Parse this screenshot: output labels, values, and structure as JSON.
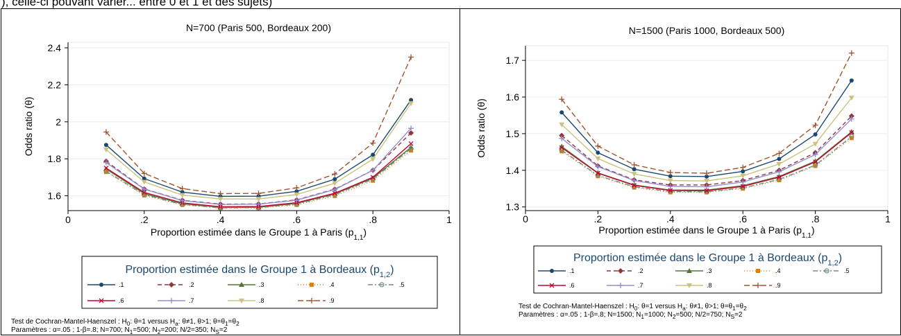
{
  "top_text": "), celle-ci pouvant varier... entre 0 et 1 et des sujets)",
  "chart_data": [
    {
      "type": "line",
      "title": "N=700 (Paris 500, Bordeaux 200)",
      "xlabel": "Proportion estimée dans le Groupe 1 à Paris (p",
      "xlabel_sub": "1,1",
      "xlabel_end": ")",
      "ylabel": "Odds ratio (θ)",
      "xlim": [
        0,
        1
      ],
      "ylim": [
        1.52,
        2.43
      ],
      "x_ticks": [
        0,
        0.2,
        0.4,
        0.6,
        0.8,
        1
      ],
      "x_tick_labels": [
        "0",
        ".2",
        ".4",
        ".6",
        ".8",
        "1"
      ],
      "y_ticks": [
        1.6,
        1.8,
        2.0,
        2.2,
        2.4
      ],
      "y_tick_labels": [
        "1.6",
        "1.8",
        "2",
        "2.2",
        "2.4"
      ],
      "grid": true,
      "legend_title": "Proportion estimée dans le Groupe 1 à Bordeaux (p",
      "legend_title_sub": "1,2",
      "legend_title_end": ")",
      "x": [
        0.1,
        0.2,
        0.3,
        0.4,
        0.5,
        0.6,
        0.7,
        0.8,
        0.9
      ],
      "series": [
        {
          "name": ".1",
          "color": "#1a476f",
          "dash": "",
          "marker": "circle",
          "values": [
            1.875,
            1.693,
            1.62,
            1.597,
            1.598,
            1.624,
            1.69,
            1.822,
            2.118
          ]
        },
        {
          "name": ".2",
          "color": "#90353b",
          "dash": "6,4",
          "marker": "diamond",
          "values": [
            1.787,
            1.637,
            1.576,
            1.555,
            1.556,
            1.578,
            1.636,
            1.738,
            1.94
          ]
        },
        {
          "name": ".3",
          "color": "#55752f",
          "dash": "",
          "marker": "triangle",
          "values": [
            1.745,
            1.612,
            1.557,
            1.538,
            1.538,
            1.559,
            1.61,
            1.696,
            1.862
          ]
        },
        {
          "name": ".4",
          "color": "#e37e00",
          "dash": "1,3",
          "marker": "square",
          "values": [
            1.729,
            1.602,
            1.551,
            1.534,
            1.534,
            1.551,
            1.599,
            1.682,
            1.845
          ]
        },
        {
          "name": ".5",
          "color": "#6e8e84",
          "dash": "7,3,2,3",
          "marker": "circle-open",
          "values": [
            1.733,
            1.606,
            1.553,
            1.535,
            1.536,
            1.555,
            1.606,
            1.69,
            1.855
          ]
        },
        {
          "name": ".6",
          "color": "#c10534",
          "dash": "",
          "marker": "x",
          "values": [
            1.75,
            1.618,
            1.562,
            1.541,
            1.542,
            1.563,
            1.614,
            1.7,
            1.882
          ]
        },
        {
          "name": ".7",
          "color": "#938dd2",
          "dash": "",
          "marker": "plus",
          "values": [
            1.78,
            1.636,
            1.574,
            1.553,
            1.555,
            1.576,
            1.634,
            1.738,
            1.965
          ]
        },
        {
          "name": ".8",
          "color": "#cac27e",
          "dash": "",
          "marker": "triangle-down",
          "values": [
            1.85,
            1.675,
            1.604,
            1.583,
            1.583,
            1.607,
            1.668,
            1.798,
            2.1
          ]
        },
        {
          "name": ".9",
          "color": "#a0522d",
          "dash": "8,4",
          "marker": "plus",
          "values": [
            1.945,
            1.721,
            1.639,
            1.612,
            1.613,
            1.643,
            1.718,
            1.885,
            2.35
          ]
        }
      ],
      "footnote_1": "Test de Cochran-Mantel-Haenszel : H",
      "footnote_1_sub1": "0",
      "footnote_1_mid": ": θ=1 versus H",
      "footnote_1_sub2": "a",
      "footnote_1_mid2": ": θ≠1, θ>1; θ=θ",
      "footnote_1_sub3": "1",
      "footnote_1_mid3": "=θ",
      "footnote_1_sub4": "2",
      "footnote_2": "Paramètres : α=.05 ; 1-β=.8; N=700; N",
      "footnote_2_sub1": "1",
      "footnote_2_mid": "=500; N",
      "footnote_2_sub2": "2",
      "footnote_2_mid2": "=200; N/2=350; N",
      "footnote_2_sub3": "S",
      "footnote_2_end": "=2"
    },
    {
      "type": "line",
      "title": "N=1500 (Paris 1000, Bordeaux 500)",
      "xlabel": "Proportion estimée dans le Groupe 1 à Paris (p",
      "xlabel_sub": "1,1",
      "xlabel_end": ")",
      "ylabel": "Odds ratio (θ)",
      "xlim": [
        0,
        1
      ],
      "ylim": [
        1.29,
        1.74
      ],
      "x_ticks": [
        0,
        0.2,
        0.4,
        0.6,
        0.8,
        1
      ],
      "x_tick_labels": [
        "0",
        ".2",
        ".4",
        ".6",
        ".8",
        "1"
      ],
      "y_ticks": [
        1.3,
        1.4,
        1.5,
        1.6,
        1.7
      ],
      "y_tick_labels": [
        "1.3",
        "1.4",
        "1.5",
        "1.6",
        "1.7"
      ],
      "grid": true,
      "legend_title": "Proportion estimée dans le Groupe 1 à Bordeaux (p",
      "legend_title_sub": "1,2",
      "legend_title_end": ")",
      "x": [
        0.1,
        0.2,
        0.3,
        0.4,
        0.5,
        0.6,
        0.7,
        0.8,
        0.9
      ],
      "series": [
        {
          "name": ".1",
          "color": "#1a476f",
          "dash": "",
          "marker": "circle",
          "values": [
            1.558,
            1.448,
            1.403,
            1.384,
            1.383,
            1.397,
            1.431,
            1.498,
            1.645
          ]
        },
        {
          "name": ".2",
          "color": "#90353b",
          "dash": "6,4",
          "marker": "diamond",
          "values": [
            1.495,
            1.412,
            1.374,
            1.36,
            1.36,
            1.372,
            1.4,
            1.448,
            1.548
          ]
        },
        {
          "name": ".3",
          "color": "#55752f",
          "dash": "",
          "marker": "triangle",
          "values": [
            1.465,
            1.393,
            1.36,
            1.346,
            1.346,
            1.358,
            1.383,
            1.425,
            1.505
          ]
        },
        {
          "name": ".4",
          "color": "#e37e00",
          "dash": "1,3",
          "marker": "square",
          "values": [
            1.452,
            1.384,
            1.353,
            1.34,
            1.34,
            1.35,
            1.373,
            1.412,
            1.488
          ]
        },
        {
          "name": ".5",
          "color": "#6e8e84",
          "dash": "7,3,2,3",
          "marker": "circle-open",
          "values": [
            1.455,
            1.386,
            1.355,
            1.342,
            1.341,
            1.352,
            1.375,
            1.414,
            1.492
          ]
        },
        {
          "name": ".6",
          "color": "#c10534",
          "dash": "",
          "marker": "x",
          "values": [
            1.462,
            1.392,
            1.359,
            1.345,
            1.344,
            1.356,
            1.381,
            1.423,
            1.503
          ]
        },
        {
          "name": ".7",
          "color": "#938dd2",
          "dash": "",
          "marker": "plus",
          "values": [
            1.487,
            1.41,
            1.372,
            1.356,
            1.355,
            1.368,
            1.396,
            1.443,
            1.54
          ]
        },
        {
          "name": ".8",
          "color": "#cac27e",
          "dash": "",
          "marker": "triangle-down",
          "values": [
            1.525,
            1.432,
            1.39,
            1.372,
            1.371,
            1.385,
            1.417,
            1.472,
            1.598
          ]
        },
        {
          "name": ".9",
          "color": "#a0522d",
          "dash": "8,4",
          "marker": "plus",
          "values": [
            1.594,
            1.466,
            1.415,
            1.394,
            1.392,
            1.408,
            1.446,
            1.523,
            1.72
          ]
        }
      ],
      "footnote_1": "Test de Cochran-Mantel-Haenszel : H",
      "footnote_1_sub1": "0",
      "footnote_1_mid": ": θ=1 versus H",
      "footnote_1_sub2": "a",
      "footnote_1_mid2": ": θ≠1, θ>1; θ=θ",
      "footnote_1_sub3": "1",
      "footnote_1_mid3": "=θ",
      "footnote_1_sub4": "2",
      "footnote_2": "Paramètres : α=.05 ; 1-β=.8; N=1500; N",
      "footnote_2_sub1": "1",
      "footnote_2_mid": "=1000; N",
      "footnote_2_sub2": "2",
      "footnote_2_mid2": "=500; N/2=750; N",
      "footnote_2_sub3": "S",
      "footnote_2_end": "=2"
    }
  ]
}
